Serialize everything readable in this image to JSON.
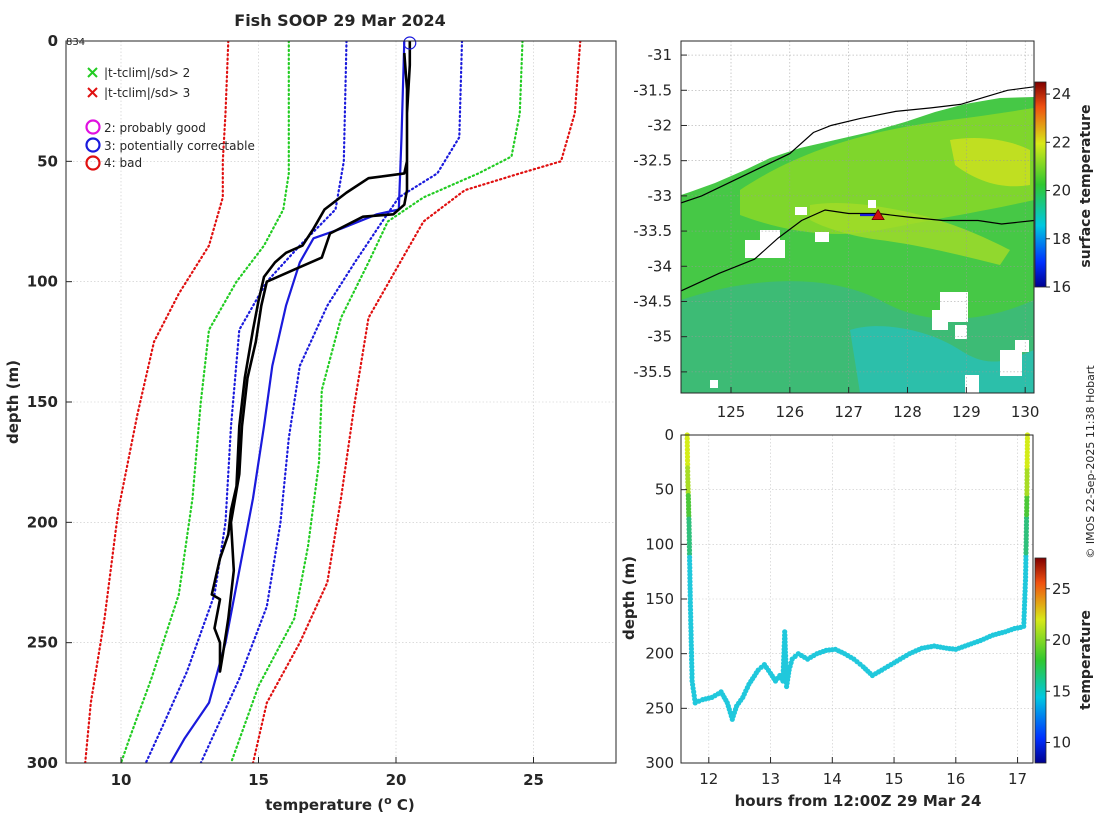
{
  "figure": {
    "title": "Fish SOOP 29 Mar 2024",
    "cast_id": "834",
    "credit": "© IMOS 22-Sep-2025 11:38 Hobart"
  },
  "legend": {
    "items": [
      {
        "label": "|t-tclim|/sd> 2",
        "symbol": "x",
        "color": "#22cc22"
      },
      {
        "label": "|t-tclim|/sd> 3",
        "symbol": "x",
        "color": "#e01010"
      },
      {
        "label": "2: probably good",
        "symbol": "o",
        "color": "#e010e0"
      },
      {
        "label": "3: potentially correctable",
        "symbol": "o",
        "color": "#1a1adc"
      },
      {
        "label": "4: bad",
        "symbol": "o",
        "color": "#e01010"
      }
    ]
  },
  "colors": {
    "profile": "#000000",
    "clim_mean": "#1a1adc",
    "sd1": "#1a1adc",
    "sd2": "#22cc22",
    "sd3": "#e01010",
    "grid": "#c8c8c8"
  },
  "chart_data": [
    {
      "type": "line",
      "name": "profile",
      "title": "Fish SOOP 29 Mar 2024",
      "xlabel": "temperature (o C)",
      "ylabel": "depth (m)",
      "xlim": [
        8,
        28
      ],
      "ylim": [
        300,
        0
      ],
      "xticks": [
        10,
        15,
        20,
        25
      ],
      "yticks": [
        0,
        50,
        100,
        150,
        200,
        250,
        300
      ],
      "annotation": "834",
      "series": [
        {
          "name": "climatology mean",
          "style": "solid",
          "color": "#1a1adc",
          "points": [
            [
              20.3,
              0
            ],
            [
              20.2,
              40
            ],
            [
              20.1,
              70
            ],
            [
              19.3,
              72
            ],
            [
              18.0,
              78
            ],
            [
              17.0,
              82
            ],
            [
              16.5,
              92
            ],
            [
              16.0,
              110
            ],
            [
              15.5,
              135
            ],
            [
              15.2,
              160
            ],
            [
              14.8,
              190
            ],
            [
              14.3,
              220
            ],
            [
              13.8,
              250
            ],
            [
              13.2,
              275
            ],
            [
              12.3,
              290
            ],
            [
              11.8,
              300
            ]
          ]
        },
        {
          "name": "clim -1sd",
          "style": "dotted",
          "color": "#1a1adc",
          "points": [
            [
              18.2,
              0
            ],
            [
              18.1,
              50
            ],
            [
              17.8,
              70
            ],
            [
              16.5,
              85
            ],
            [
              15.3,
              100
            ],
            [
              14.3,
              120
            ],
            [
              14.0,
              160
            ],
            [
              13.8,
              200
            ],
            [
              13.4,
              230
            ],
            [
              12.4,
              262
            ],
            [
              11.5,
              285
            ],
            [
              10.9,
              300
            ]
          ]
        },
        {
          "name": "clim +1sd",
          "style": "dotted",
          "color": "#1a1adc",
          "points": [
            [
              22.4,
              0
            ],
            [
              22.3,
              40
            ],
            [
              21.5,
              55
            ],
            [
              20.1,
              65
            ],
            [
              19.5,
              75
            ],
            [
              18.5,
              92
            ],
            [
              17.5,
              110
            ],
            [
              16.5,
              135
            ],
            [
              16.1,
              165
            ],
            [
              15.8,
              200
            ],
            [
              15.3,
              235
            ],
            [
              14.3,
              265
            ],
            [
              13.3,
              290
            ],
            [
              12.9,
              300
            ]
          ]
        },
        {
          "name": "clim -2sd",
          "style": "dotted",
          "color": "#22cc22",
          "points": [
            [
              16.1,
              0
            ],
            [
              16.1,
              55
            ],
            [
              15.9,
              70
            ],
            [
              15.2,
              85
            ],
            [
              14.2,
              100
            ],
            [
              13.2,
              120
            ],
            [
              12.9,
              150
            ],
            [
              12.6,
              190
            ],
            [
              12.1,
              230
            ],
            [
              11.1,
              265
            ],
            [
              10.3,
              290
            ],
            [
              10.0,
              300
            ]
          ]
        },
        {
          "name": "clim +2sd",
          "style": "dotted",
          "color": "#22cc22",
          "points": [
            [
              24.6,
              0
            ],
            [
              24.5,
              30
            ],
            [
              24.2,
              48
            ],
            [
              23.0,
              55
            ],
            [
              21.0,
              65
            ],
            [
              19.7,
              75
            ],
            [
              19.0,
              92
            ],
            [
              18.0,
              115
            ],
            [
              17.3,
              145
            ],
            [
              17.2,
              175
            ],
            [
              16.8,
              210
            ],
            [
              16.3,
              240
            ],
            [
              15.0,
              268
            ],
            [
              14.0,
              300
            ]
          ]
        },
        {
          "name": "clim -3sd",
          "style": "dotted",
          "color": "#e01010",
          "points": [
            [
              13.9,
              0
            ],
            [
              13.8,
              30
            ],
            [
              13.7,
              50
            ],
            [
              13.7,
              65
            ],
            [
              13.2,
              85
            ],
            [
              12.1,
              105
            ],
            [
              11.2,
              125
            ],
            [
              10.6,
              155
            ],
            [
              9.9,
              195
            ],
            [
              9.4,
              240
            ],
            [
              8.9,
              275
            ],
            [
              8.7,
              300
            ]
          ]
        },
        {
          "name": "clim +3sd",
          "style": "dotted",
          "color": "#e01010",
          "points": [
            [
              26.7,
              0
            ],
            [
              26.5,
              30
            ],
            [
              26.0,
              50
            ],
            [
              24.5,
              55
            ],
            [
              22.5,
              62
            ],
            [
              21.0,
              75
            ],
            [
              20.0,
              95
            ],
            [
              19.0,
              115
            ],
            [
              18.5,
              150
            ],
            [
              18.0,
              190
            ],
            [
              17.5,
              225
            ],
            [
              16.5,
              250
            ],
            [
              15.3,
              275
            ],
            [
              14.8,
              300
            ]
          ]
        },
        {
          "name": "measured profile",
          "style": "solid",
          "color": "#000000",
          "points": [
            [
              20.5,
              0
            ],
            [
              20.5,
              10
            ],
            [
              20.4,
              30
            ],
            [
              20.4,
              50
            ],
            [
              20.3,
              55
            ],
            [
              19.0,
              57
            ],
            [
              18.2,
              63
            ],
            [
              17.4,
              70
            ],
            [
              17.0,
              78
            ],
            [
              16.6,
              85
            ],
            [
              16.0,
              88
            ],
            [
              15.6,
              92
            ],
            [
              15.2,
              98
            ],
            [
              15.0,
              108
            ],
            [
              14.8,
              120
            ],
            [
              14.5,
              140
            ],
            [
              14.3,
              160
            ],
            [
              14.2,
              185
            ],
            [
              14.0,
              195
            ],
            [
              13.9,
              205
            ],
            [
              13.6,
              215
            ],
            [
              13.3,
              230
            ],
            [
              13.6,
              232
            ],
            [
              13.4,
              244
            ],
            [
              13.6,
              250
            ],
            [
              13.6,
              262
            ],
            [
              13.7,
              255
            ],
            [
              13.9,
              240
            ],
            [
              14.1,
              220
            ],
            [
              14.0,
              200
            ],
            [
              14.3,
              180
            ],
            [
              14.4,
              160
            ],
            [
              14.6,
              140
            ],
            [
              14.9,
              125
            ],
            [
              15.1,
              110
            ],
            [
              15.3,
              100
            ],
            [
              16.3,
              95
            ],
            [
              17.3,
              90
            ],
            [
              17.6,
              80
            ],
            [
              18.8,
              73
            ],
            [
              19.9,
              72
            ],
            [
              20.3,
              68
            ],
            [
              20.4,
              62
            ],
            [
              20.4,
              50
            ],
            [
              20.4,
              20
            ],
            [
              20.3,
              5
            ]
          ]
        }
      ],
      "markers": [
        {
          "label": "start",
          "x": 20.5,
          "y": 0,
          "symbol": "o",
          "color": "#1a1adc"
        }
      ]
    },
    {
      "type": "heatmap",
      "name": "surface temperature map",
      "xlim": [
        124.15,
        130.15
      ],
      "ylim": [
        -35.8,
        -30.8
      ],
      "xticks": [
        125,
        126,
        127,
        128,
        129,
        130
      ],
      "yticks": [
        -31,
        -31.5,
        -32,
        -32.5,
        -33,
        -33.5,
        -34,
        -34.5,
        -35,
        -35.5
      ],
      "colorbar": {
        "label": "surface temperature",
        "range": [
          16,
          24.5
        ],
        "ticks": [
          16,
          18,
          20,
          22,
          24
        ]
      },
      "coastline": [
        [
          124.15,
          -33.1
        ],
        [
          124.5,
          -33.0
        ],
        [
          125.0,
          -32.8
        ],
        [
          125.5,
          -32.6
        ],
        [
          126.0,
          -32.4
        ],
        [
          126.4,
          -32.1
        ],
        [
          126.7,
          -32.0
        ],
        [
          127.2,
          -31.9
        ],
        [
          127.8,
          -31.8
        ],
        [
          128.4,
          -31.75
        ],
        [
          128.9,
          -31.7
        ],
        [
          129.3,
          -31.6
        ],
        [
          129.7,
          -31.5
        ],
        [
          130.15,
          -31.45
        ]
      ],
      "ship_track": [
        [
          124.15,
          -34.35
        ],
        [
          124.8,
          -34.1
        ],
        [
          125.4,
          -33.9
        ],
        [
          125.8,
          -33.6
        ],
        [
          126.2,
          -33.35
        ],
        [
          126.6,
          -33.2
        ],
        [
          127.0,
          -33.25
        ],
        [
          127.5,
          -33.25
        ],
        [
          128.0,
          -33.3
        ],
        [
          128.6,
          -33.35
        ],
        [
          129.2,
          -33.35
        ],
        [
          129.6,
          -33.4
        ],
        [
          130.15,
          -33.35
        ]
      ],
      "cast_marker": {
        "lon": 127.5,
        "lat": -33.28,
        "symbol": "triangle",
        "color": "#d01010"
      }
    },
    {
      "type": "scatter",
      "name": "depth-time section",
      "xlabel": "hours from 12:00Z 29 Mar 24",
      "ylabel": "depth (m)",
      "xlim": [
        11.55,
        17.25
      ],
      "ylim": [
        300,
        0
      ],
      "xticks": [
        12,
        13,
        14,
        15,
        16,
        17
      ],
      "yticks": [
        0,
        50,
        100,
        150,
        200,
        250,
        300
      ],
      "colorbar": {
        "label": "temperature",
        "range": [
          8,
          28
        ],
        "ticks": [
          10,
          15,
          20,
          25
        ]
      },
      "series": [
        {
          "name": "cast bottoms",
          "points": [
            [
              11.65,
              0
            ],
            [
              11.66,
              40
            ],
            [
              11.68,
              80
            ],
            [
              11.7,
              150
            ],
            [
              11.73,
              225
            ],
            [
              11.78,
              245
            ],
            [
              11.9,
              242
            ],
            [
              12.05,
              240
            ],
            [
              12.2,
              235
            ],
            [
              12.3,
              245
            ],
            [
              12.38,
              260
            ],
            [
              12.45,
              248
            ],
            [
              12.55,
              240
            ],
            [
              12.65,
              228
            ],
            [
              12.8,
              215
            ],
            [
              12.9,
              210
            ],
            [
              13.0,
              218
            ],
            [
              13.08,
              225
            ],
            [
              13.15,
              220
            ],
            [
              13.2,
              225
            ],
            [
              13.23,
              180
            ],
            [
              13.26,
              230
            ],
            [
              13.3,
              215
            ],
            [
              13.35,
              205
            ],
            [
              13.45,
              200
            ],
            [
              13.6,
              205
            ],
            [
              13.75,
              200
            ],
            [
              13.9,
              197
            ],
            [
              14.05,
              196
            ],
            [
              14.2,
              200
            ],
            [
              14.35,
              205
            ],
            [
              14.5,
              212
            ],
            [
              14.65,
              220
            ],
            [
              14.8,
              215
            ],
            [
              14.95,
              210
            ],
            [
              15.1,
              205
            ],
            [
              15.25,
              200
            ],
            [
              15.45,
              195
            ],
            [
              15.65,
              193
            ],
            [
              15.85,
              195
            ],
            [
              16.0,
              196
            ],
            [
              16.2,
              192
            ],
            [
              16.4,
              188
            ],
            [
              16.6,
              183
            ],
            [
              16.8,
              180
            ],
            [
              16.95,
              177
            ],
            [
              17.05,
              176
            ],
            [
              17.1,
              175
            ],
            [
              17.13,
              130
            ],
            [
              17.15,
              60
            ],
            [
              17.16,
              0
            ]
          ]
        }
      ]
    }
  ]
}
